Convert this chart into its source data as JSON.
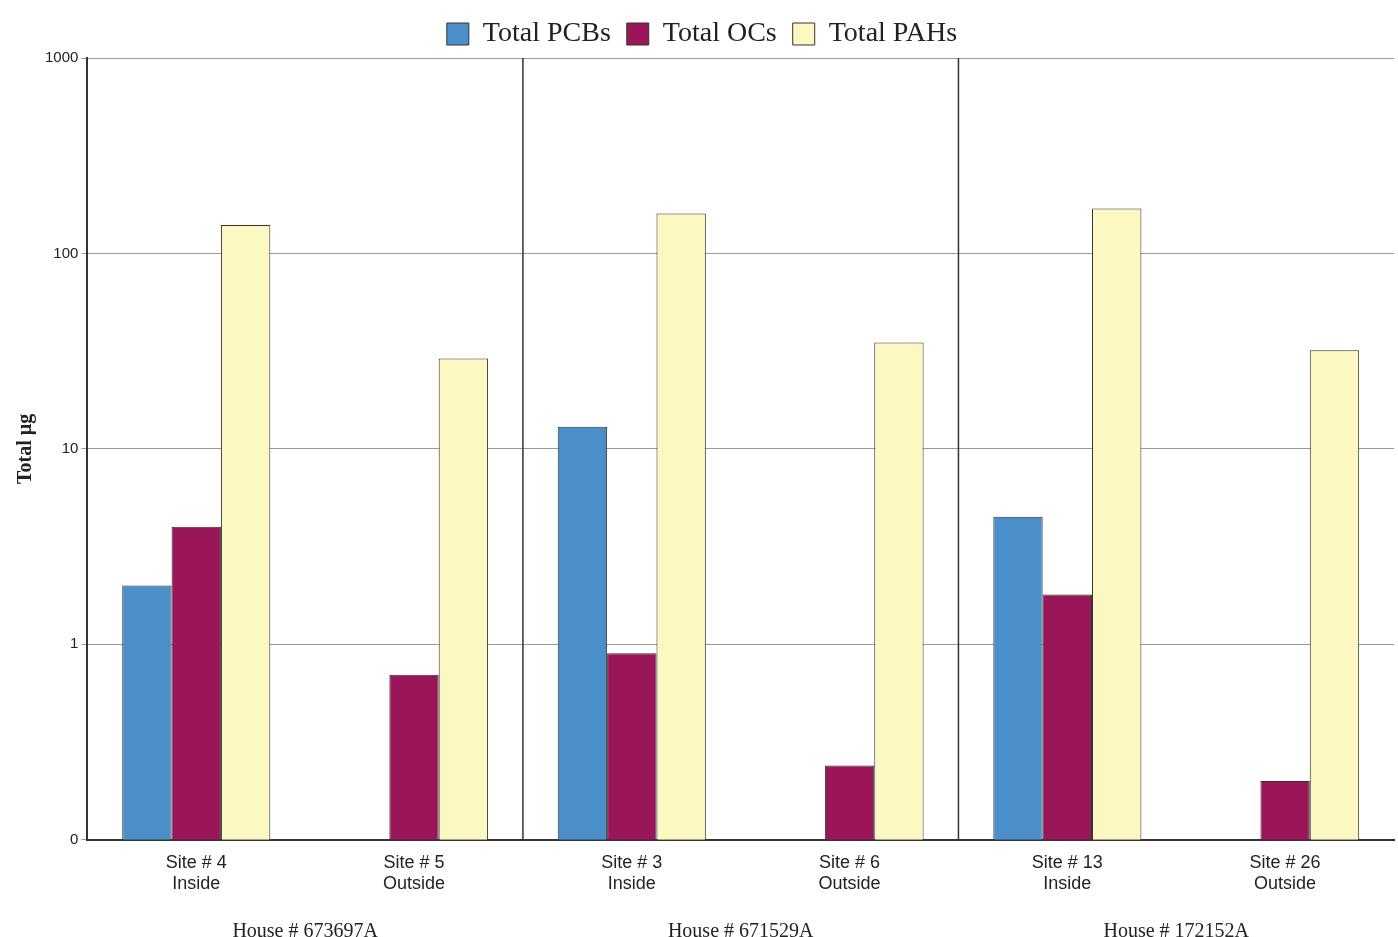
{
  "chart_data": {
    "type": "bar",
    "ylabel": "Total µg",
    "categories": [
      "Site # 4\nInside",
      "Site # 5\nOutside",
      "Site # 3\nInside",
      "Site # 6\nOutside",
      "Site # 13\nInside",
      "Site # 26\nOutside"
    ],
    "series": [
      {
        "name": "Total PCBs",
        "color": "#4a8fc9",
        "values": [
          2.0,
          null,
          13,
          null,
          4.5,
          null
        ]
      },
      {
        "name": "Total OCs",
        "color": "#9a1659",
        "values": [
          4.0,
          0.7,
          0.9,
          0.24,
          1.8,
          0.2
        ]
      },
      {
        "name": "Total PAHs",
        "color": "#fbf8c2",
        "values": [
          140,
          29,
          160,
          35,
          170,
          32
        ]
      }
    ],
    "log": true,
    "ylim": [
      0.1,
      1000
    ],
    "yticks": [
      {
        "value": 0.1,
        "label": "0"
      },
      1,
      10,
      100,
      1000
    ],
    "grid": "y",
    "legend": "top",
    "annotations": [
      "House # 673697A",
      "House # 671529A",
      "House # 172152A"
    ]
  }
}
